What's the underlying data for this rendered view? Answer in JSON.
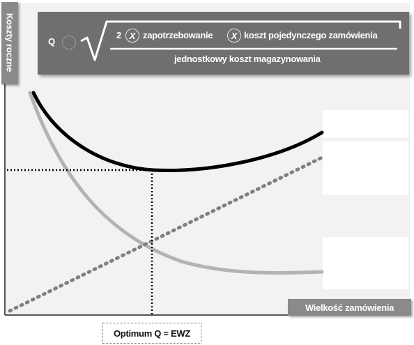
{
  "y_axis_title": "Koszty roczne",
  "x_axis_title": "Wielkość zamówienia",
  "optimum_label": "Optimum Q = EWZ",
  "formula": {
    "lhs": "Q",
    "coefficient": "2",
    "multiply_symbol": "X",
    "term_demand": "zapotrzebowanie",
    "term_order_cost": "koszt pojedynczego zamówienia",
    "denominator": "jednostkowy koszt magazynowania"
  },
  "colors": {
    "plot_background": "#f2f2f2",
    "total_cost_curve": "#000000",
    "ordering_cost_curve": "#b3b3b3",
    "holding_cost_line": "#808080",
    "formula_box": "#6f6f6f",
    "axis_title_box": "#8a8a8a"
  }
}
